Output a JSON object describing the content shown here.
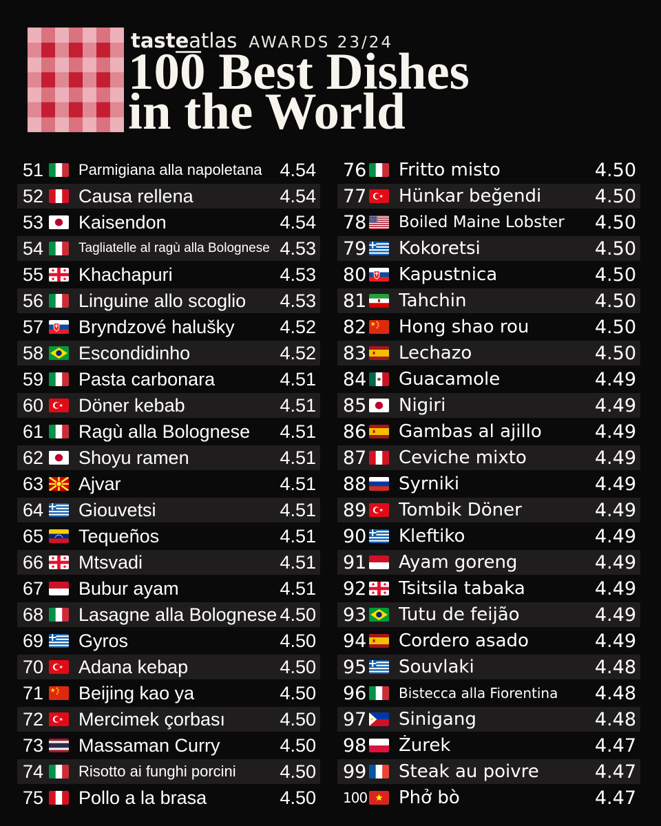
{
  "header": {
    "logo": {
      "p1": "tast",
      "p2": "e",
      "p3": "a",
      "p4": "tlas",
      "awards": "AWARDS 23/24"
    },
    "title_line1": "100 Best Dishes",
    "title_line2": "in the World"
  },
  "colors": {
    "background": "#0a0a0a",
    "row_alt": "#201d1e",
    "text": "#ffffff",
    "brand_red": "#c41e33"
  },
  "list": {
    "items": [
      {
        "rank": 51,
        "country": "it",
        "dish": "Parmigiana alla napoletana",
        "rating": "4.54"
      },
      {
        "rank": 52,
        "country": "pe",
        "dish": "Causa rellena",
        "rating": "4.54"
      },
      {
        "rank": 53,
        "country": "jp",
        "dish": "Kaisendon",
        "rating": "4.54"
      },
      {
        "rank": 54,
        "country": "it",
        "dish": "Tagliatelle al ragù alla Bolognese",
        "rating": "4.53"
      },
      {
        "rank": 55,
        "country": "ge",
        "dish": "Khachapuri",
        "rating": "4.53"
      },
      {
        "rank": 56,
        "country": "it",
        "dish": "Linguine allo scoglio",
        "rating": "4.53"
      },
      {
        "rank": 57,
        "country": "sk",
        "dish": "Bryndzové halušky",
        "rating": "4.52"
      },
      {
        "rank": 58,
        "country": "br",
        "dish": "Escondidinho",
        "rating": "4.52"
      },
      {
        "rank": 59,
        "country": "it",
        "dish": "Pasta carbonara",
        "rating": "4.51"
      },
      {
        "rank": 60,
        "country": "tr",
        "dish": "Döner kebab",
        "rating": "4.51"
      },
      {
        "rank": 61,
        "country": "it",
        "dish": "Ragù alla Bolognese",
        "rating": "4.51"
      },
      {
        "rank": 62,
        "country": "jp",
        "dish": "Shoyu ramen",
        "rating": "4.51"
      },
      {
        "rank": 63,
        "country": "mk",
        "dish": "Ajvar",
        "rating": "4.51"
      },
      {
        "rank": 64,
        "country": "gr",
        "dish": "Giouvetsi",
        "rating": "4.51"
      },
      {
        "rank": 65,
        "country": "ve",
        "dish": "Tequeños",
        "rating": "4.51"
      },
      {
        "rank": 66,
        "country": "ge",
        "dish": "Mtsvadi",
        "rating": "4.51"
      },
      {
        "rank": 67,
        "country": "id",
        "dish": "Bubur ayam",
        "rating": "4.51"
      },
      {
        "rank": 68,
        "country": "it",
        "dish": "Lasagne alla Bolognese",
        "rating": "4.50"
      },
      {
        "rank": 69,
        "country": "gr",
        "dish": "Gyros",
        "rating": "4.50"
      },
      {
        "rank": 70,
        "country": "tr",
        "dish": "Adana kebap",
        "rating": "4.50"
      },
      {
        "rank": 71,
        "country": "cn",
        "dish": "Beijing kao ya",
        "rating": "4.50"
      },
      {
        "rank": 72,
        "country": "tr",
        "dish": "Mercimek çorbası",
        "rating": "4.50"
      },
      {
        "rank": 73,
        "country": "th",
        "dish": "Massaman Curry",
        "rating": "4.50"
      },
      {
        "rank": 74,
        "country": "it",
        "dish": "Risotto ai funghi porcini",
        "rating": "4.50"
      },
      {
        "rank": 75,
        "country": "pe",
        "dish": "Pollo a la brasa",
        "rating": "4.50"
      },
      {
        "rank": 76,
        "country": "it",
        "dish": "Fritto misto",
        "rating": "4.50"
      },
      {
        "rank": 77,
        "country": "tr",
        "dish": "Hünkar beğendi",
        "rating": "4.50"
      },
      {
        "rank": 78,
        "country": "us",
        "dish": "Boiled Maine Lobster",
        "rating": "4.50"
      },
      {
        "rank": 79,
        "country": "gr",
        "dish": "Kokoretsi",
        "rating": "4.50"
      },
      {
        "rank": 80,
        "country": "sk",
        "dish": "Kapustnica",
        "rating": "4.50"
      },
      {
        "rank": 81,
        "country": "ir",
        "dish": "Tahchin",
        "rating": "4.50"
      },
      {
        "rank": 82,
        "country": "cn",
        "dish": "Hong shao rou",
        "rating": "4.50"
      },
      {
        "rank": 83,
        "country": "es",
        "dish": "Lechazo",
        "rating": "4.50"
      },
      {
        "rank": 84,
        "country": "mx",
        "dish": "Guacamole",
        "rating": "4.49"
      },
      {
        "rank": 85,
        "country": "jp",
        "dish": "Nigiri",
        "rating": "4.49"
      },
      {
        "rank": 86,
        "country": "es",
        "dish": "Gambas al ajillo",
        "rating": "4.49"
      },
      {
        "rank": 87,
        "country": "pe",
        "dish": "Ceviche mixto",
        "rating": "4.49"
      },
      {
        "rank": 88,
        "country": "ru",
        "dish": "Syrniki",
        "rating": "4.49"
      },
      {
        "rank": 89,
        "country": "tr",
        "dish": "Tombik Döner",
        "rating": "4.49"
      },
      {
        "rank": 90,
        "country": "gr",
        "dish": "Kleftiko",
        "rating": "4.49"
      },
      {
        "rank": 91,
        "country": "id",
        "dish": "Ayam goreng",
        "rating": "4.49"
      },
      {
        "rank": 92,
        "country": "ge",
        "dish": "Tsitsila tabaka",
        "rating": "4.49"
      },
      {
        "rank": 93,
        "country": "br",
        "dish": "Tutu de feijão",
        "rating": "4.49"
      },
      {
        "rank": 94,
        "country": "es",
        "dish": "Cordero asado",
        "rating": "4.49"
      },
      {
        "rank": 95,
        "country": "gr",
        "dish": "Souvlaki",
        "rating": "4.48"
      },
      {
        "rank": 96,
        "country": "it",
        "dish": "Bistecca alla Fiorentina",
        "rating": "4.48"
      },
      {
        "rank": 97,
        "country": "ph",
        "dish": "Sinigang",
        "rating": "4.48"
      },
      {
        "rank": 98,
        "country": "pl",
        "dish": "Żurek",
        "rating": "4.47"
      },
      {
        "rank": 99,
        "country": "fr",
        "dish": "Steak au poivre",
        "rating": "4.47"
      },
      {
        "rank": 100,
        "country": "vn",
        "dish": "Phở bò",
        "rating": "4.47"
      }
    ]
  }
}
